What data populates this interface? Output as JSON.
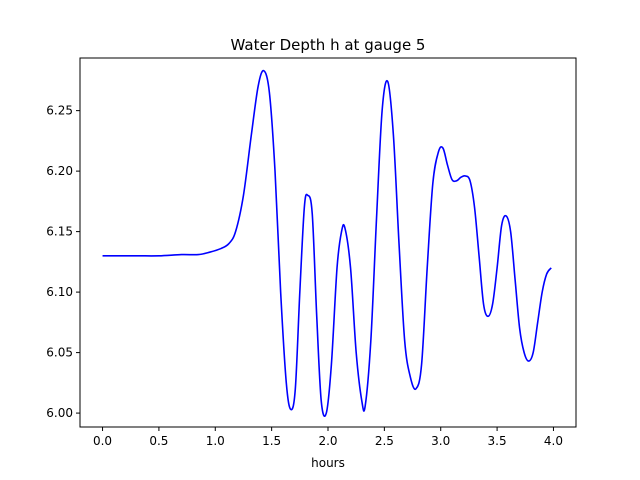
{
  "chart_data": {
    "type": "line",
    "title": "Water Depth h at gauge 5",
    "xlabel": "hours",
    "ylabel": "",
    "xlim": [
      -0.2,
      4.2
    ],
    "ylim": [
      5.9885,
      6.2935
    ],
    "xticks": [
      0.0,
      0.5,
      1.0,
      1.5,
      2.0,
      2.5,
      3.0,
      3.5,
      4.0
    ],
    "xtick_labels": [
      "0.0",
      "0.5",
      "1.0",
      "1.5",
      "2.0",
      "2.5",
      "3.0",
      "3.5",
      "4.0"
    ],
    "yticks": [
      6.0,
      6.05,
      6.1,
      6.15,
      6.2,
      6.25
    ],
    "ytick_labels": [
      "6.00",
      "6.05",
      "6.10",
      "6.15",
      "6.20",
      "6.25"
    ],
    "grid": false,
    "series": [
      {
        "color": "#0000ff",
        "x": [
          0.0,
          0.3,
          0.5,
          0.7,
          0.85,
          0.95,
          1.05,
          1.12,
          1.18,
          1.25,
          1.32,
          1.38,
          1.43,
          1.48,
          1.53,
          1.58,
          1.63,
          1.67,
          1.71,
          1.75,
          1.79,
          1.82,
          1.86,
          1.9,
          1.94,
          1.985,
          2.03,
          2.08,
          2.12,
          2.15,
          2.2,
          2.25,
          2.3,
          2.33,
          2.38,
          2.43,
          2.48,
          2.53,
          2.58,
          2.63,
          2.68,
          2.73,
          2.78,
          2.83,
          2.88,
          2.93,
          2.98,
          3.02,
          3.06,
          3.1,
          3.14,
          3.18,
          3.22,
          3.26,
          3.3,
          3.34,
          3.38,
          3.42,
          3.46,
          3.5,
          3.54,
          3.58,
          3.62,
          3.66,
          3.7,
          3.74,
          3.78,
          3.82,
          3.86,
          3.9,
          3.94,
          3.98
        ],
        "y": [
          6.13,
          6.13,
          6.13,
          6.131,
          6.131,
          6.133,
          6.136,
          6.14,
          6.15,
          6.18,
          6.23,
          6.27,
          6.283,
          6.265,
          6.2,
          6.1,
          6.025,
          6.003,
          6.02,
          6.1,
          6.17,
          6.18,
          6.165,
          6.08,
          6.01,
          6.0,
          6.04,
          6.12,
          6.15,
          6.153,
          6.12,
          6.05,
          6.01,
          6.006,
          6.06,
          6.16,
          6.25,
          6.274,
          6.23,
          6.14,
          6.06,
          6.03,
          6.02,
          6.04,
          6.12,
          6.19,
          6.216,
          6.219,
          6.205,
          6.193,
          6.192,
          6.195,
          6.196,
          6.192,
          6.17,
          6.13,
          6.09,
          6.08,
          6.09,
          6.12,
          6.155,
          6.163,
          6.15,
          6.11,
          6.07,
          6.05,
          6.043,
          6.05,
          6.075,
          6.1,
          6.115,
          6.12
        ]
      }
    ]
  }
}
